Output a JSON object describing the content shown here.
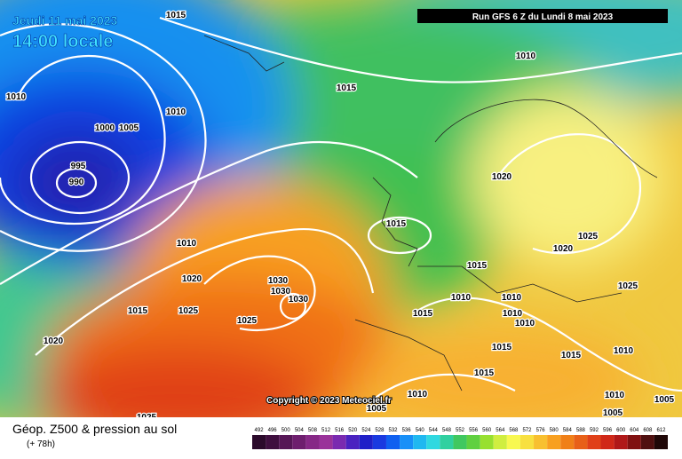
{
  "header": {
    "date": "Jeudi 11 mai 2023",
    "time": "14:00 locale",
    "run": "Run GFS 6 Z du Lundi 8 mai 2023"
  },
  "copyright": "Copyright © 2023 Meteociel.fr",
  "footer": {
    "title": "Géop. Z500 & pression au sol",
    "lead": "(+ 78h)"
  },
  "isobar_labels": [
    "1015",
    "1010",
    "1015",
    "1010",
    "1010",
    "1000",
    "1005",
    "995",
    "990",
    "1020",
    "1015",
    "1010",
    "1025",
    "1020",
    "1015",
    "1020",
    "1030",
    "1030",
    "1030",
    "1025",
    "1010",
    "1010",
    "1015",
    "1025",
    "1010",
    "1015",
    "1025",
    "1010",
    "1020",
    "1015",
    "1010",
    "1015",
    "1015",
    "1010",
    "1010",
    "1005",
    "1005",
    "1005",
    "1025"
  ],
  "legend": {
    "values": [
      492,
      496,
      500,
      504,
      508,
      512,
      516,
      520,
      524,
      528,
      532,
      536,
      540,
      544,
      548,
      552,
      556,
      560,
      564,
      568,
      572,
      576,
      580,
      584,
      588,
      592,
      596,
      600,
      604,
      608,
      612
    ],
    "colors": [
      "#2b0a2b",
      "#3f0f3f",
      "#561656",
      "#6e1e6e",
      "#862886",
      "#9a329a",
      "#7a2ab0",
      "#4a22c0",
      "#2020c8",
      "#1a3ae0",
      "#1060f0",
      "#1890f8",
      "#20b8f0",
      "#30d8e0",
      "#30d0a0",
      "#40c860",
      "#60d040",
      "#98e030",
      "#d0ee40",
      "#f8f850",
      "#f8e040",
      "#f8c030",
      "#f8a020",
      "#f08018",
      "#e86018",
      "#e04018",
      "#d02818",
      "#b01818",
      "#801010",
      "#501010",
      "#200808"
    ]
  }
}
